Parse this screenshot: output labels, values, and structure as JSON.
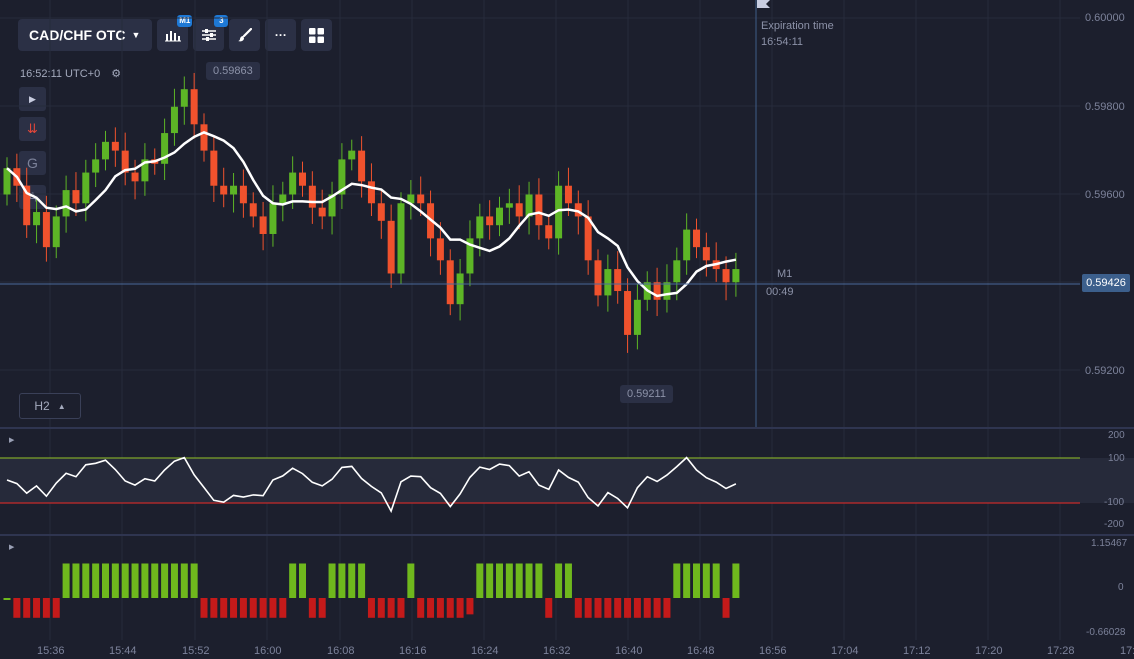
{
  "toolbar": {
    "pair": "CAD/CHF OTC",
    "chart_type_badge": "M1",
    "indicators_badge": "3",
    "more_label": "···"
  },
  "clock": "16:52:11 UTC+0",
  "side_buttons": {
    "g": "G",
    "a": "A"
  },
  "timeframe": "H2",
  "high_label": "0.59863",
  "low_label": "0.59211",
  "current_price": "0.59426",
  "expiration": {
    "title": "Expiration time",
    "time": "16:54:11"
  },
  "order_line": {
    "timeframe": "M1",
    "timer": "00:49"
  },
  "y_axis": [
    "0.60000",
    "0.59800",
    "0.59600",
    "0.59200"
  ],
  "osc1_axis": [
    "200",
    "100",
    "-100",
    "-200"
  ],
  "osc2_axis": [
    "1.15467",
    "0",
    "-0.66028"
  ],
  "x_axis": [
    "15:36",
    "15:44",
    "15:52",
    "16:00",
    "16:08",
    "16:16",
    "16:24",
    "16:32",
    "16:40",
    "16:48",
    "16:56",
    "17:04",
    "17:12",
    "17:20",
    "17:28",
    "17:3"
  ],
  "colors": {
    "bull": "#5db526",
    "bear": "#f0522d",
    "ma": "#ffffff",
    "level_up": "#7ea52a",
    "level_down": "#c52a2a",
    "current_line": "#4a6a9a"
  },
  "chart_data": {
    "type": "candlestick",
    "candles_close": [
      0.5966,
      0.5962,
      0.5953,
      0.5956,
      0.5948,
      0.5955,
      0.5961,
      0.5958,
      0.5965,
      0.5968,
      0.5972,
      0.597,
      0.5965,
      0.5963,
      0.5968,
      0.5967,
      0.5974,
      0.598,
      0.5984,
      0.5976,
      0.597,
      0.5962,
      0.596,
      0.5962,
      0.5958,
      0.5955,
      0.5951,
      0.5958,
      0.596,
      0.5965,
      0.5962,
      0.5957,
      0.5955,
      0.596,
      0.5968,
      0.597,
      0.5963,
      0.5958,
      0.5954,
      0.5942,
      0.5958,
      0.596,
      0.5958,
      0.595,
      0.5945,
      0.5935,
      0.5942,
      0.595,
      0.5955,
      0.5953,
      0.5957,
      0.5958,
      0.5955,
      0.596,
      0.5953,
      0.595,
      0.5962,
      0.5958,
      0.5955,
      0.5945,
      0.5937,
      0.5943,
      0.5938,
      0.5928,
      0.5936,
      0.594,
      0.5936,
      0.594,
      0.5945,
      0.5952,
      0.5948,
      0.5945,
      0.5943,
      0.594,
      0.5943
    ]
  }
}
